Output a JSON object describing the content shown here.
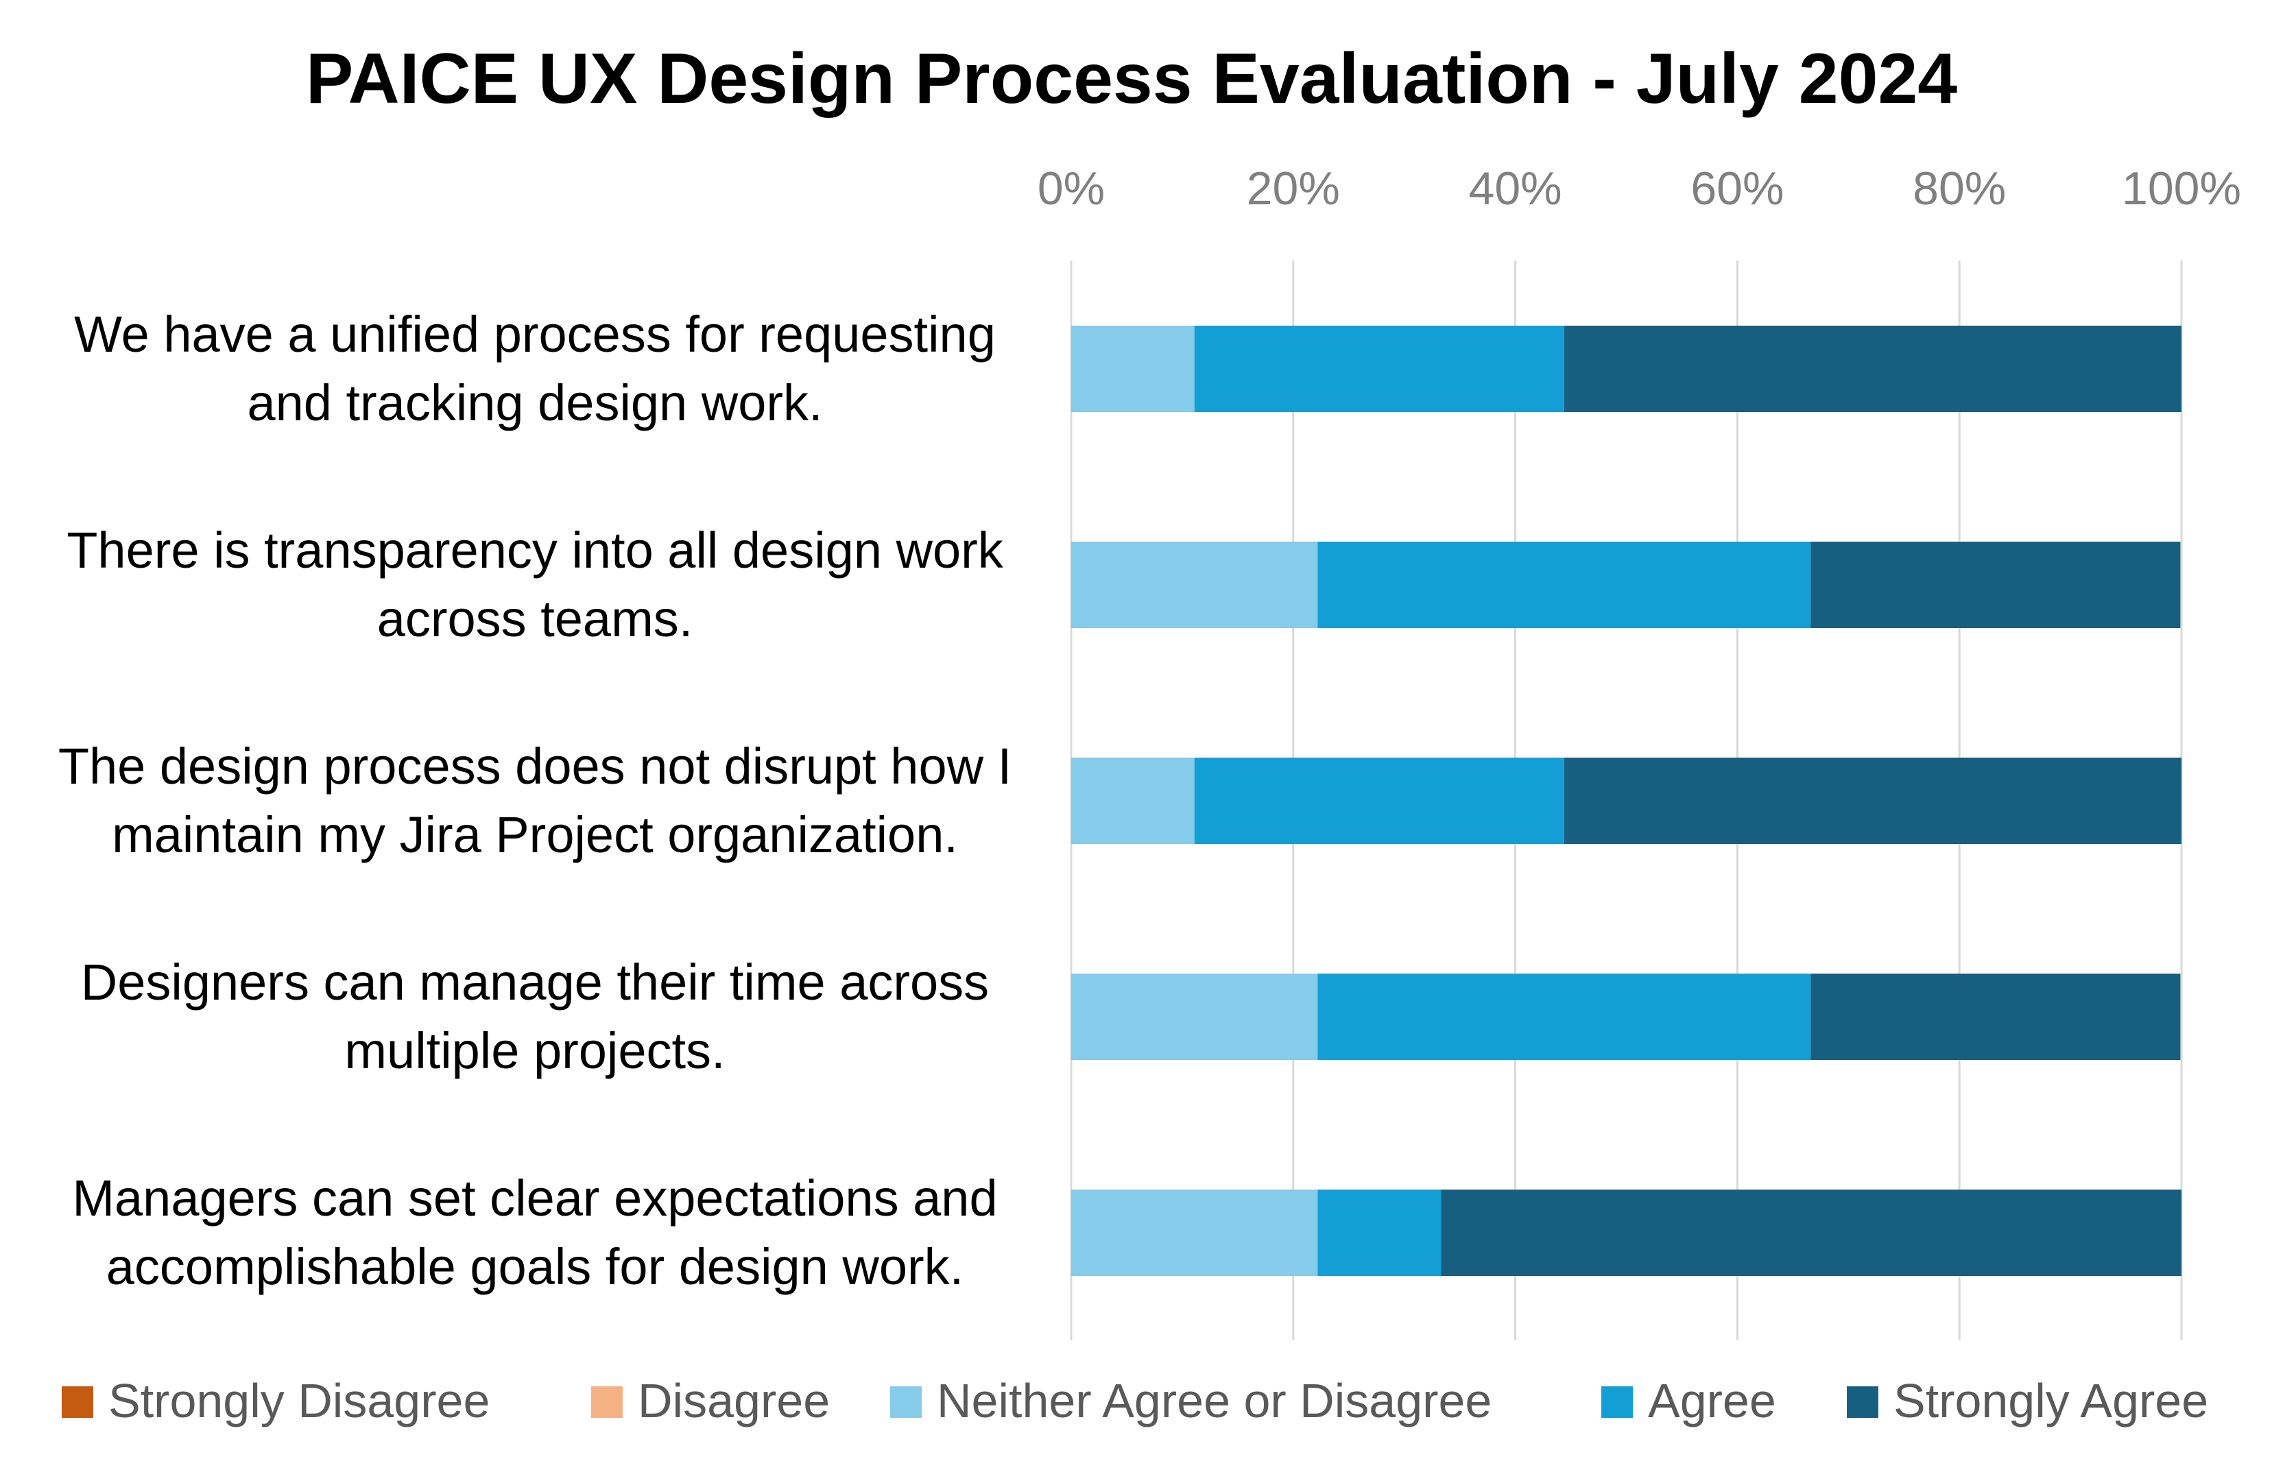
{
  "chart_data": {
    "type": "bar",
    "orientation": "horizontal",
    "stacked": "percent",
    "title": "PAICE UX Design Process Evaluation - July 2024",
    "xlabel": "",
    "ylabel": "",
    "xlim": [
      0,
      100
    ],
    "tick_labels": [
      "0%",
      "20%",
      "40%",
      "60%",
      "80%",
      "100%"
    ],
    "grid": true,
    "legend_position": "bottom",
    "categories": [
      [
        "We have a unified process for requesting",
        "and tracking design work."
      ],
      [
        "There is transparency into all design work",
        "across teams."
      ],
      [
        "The design process does not disrupt how I",
        "maintain my Jira Project organization."
      ],
      [
        "Designers can manage their time across",
        "multiple projects."
      ],
      [
        "Managers can set clear expectations and",
        "accomplishable goals for design work."
      ]
    ],
    "series": [
      {
        "name": "Strongly Disagree",
        "color": "#C55A11",
        "values": [
          0,
          0,
          0,
          0,
          0
        ]
      },
      {
        "name": "Disagree",
        "color": "#F4B183",
        "values": [
          0,
          0,
          0,
          0,
          0
        ]
      },
      {
        "name": "Neither Agree or Disagree",
        "color": "#85CBEA",
        "values": [
          11.1,
          22.2,
          11.1,
          22.2,
          22.2
        ]
      },
      {
        "name": "Agree",
        "color": "#139FD6",
        "values": [
          33.3,
          44.4,
          33.3,
          44.4,
          11.1
        ]
      },
      {
        "name": "Strongly Agree",
        "color": "#175F80",
        "values": [
          55.6,
          33.3,
          55.6,
          33.3,
          66.7
        ]
      }
    ]
  }
}
